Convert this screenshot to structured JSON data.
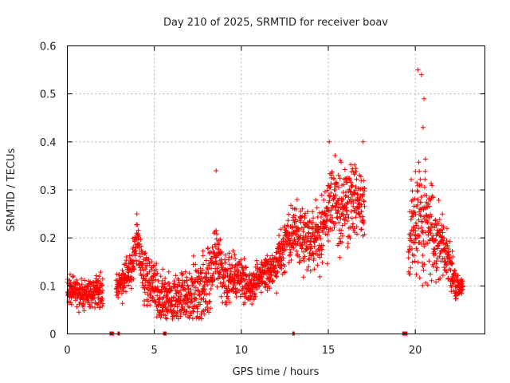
{
  "chart_data": {
    "type": "scatter",
    "title": "Day 210 of 2025, SRMTID for receiver boav",
    "xlabel": "GPS time / hours",
    "ylabel": "SRMTID / TECUs",
    "xlim": [
      0,
      24
    ],
    "ylim": [
      0,
      0.6
    ],
    "xticks": [
      0,
      5,
      10,
      15,
      20
    ],
    "xtick_labels": [
      "0",
      "5",
      "10",
      "15",
      "20"
    ],
    "yticks": [
      0,
      0.1,
      0.2,
      0.3,
      0.4,
      0.5,
      0.6
    ],
    "ytick_labels": [
      "0",
      "0.1",
      "0.2",
      "0.3",
      "0.4",
      "0.5",
      "0.6"
    ],
    "grid": true,
    "marker": "+",
    "color": "#ff0000",
    "series": [
      {
        "name": "SRMTID",
        "profile": [
          [
            0.0,
            0.09
          ],
          [
            0.5,
            0.09
          ],
          [
            1.0,
            0.08
          ],
          [
            1.5,
            0.09
          ],
          [
            2.0,
            0.09
          ],
          [
            2.9,
            0.1
          ],
          [
            3.3,
            0.12
          ],
          [
            3.7,
            0.14
          ],
          [
            4.0,
            0.2
          ],
          [
            4.3,
            0.13
          ],
          [
            4.8,
            0.11
          ],
          [
            5.3,
            0.08
          ],
          [
            6.0,
            0.07
          ],
          [
            7.0,
            0.08
          ],
          [
            8.0,
            0.09
          ],
          [
            8.5,
            0.17
          ],
          [
            9.0,
            0.11
          ],
          [
            10.0,
            0.12
          ],
          [
            10.5,
            0.09
          ],
          [
            11.0,
            0.12
          ],
          [
            12.0,
            0.14
          ],
          [
            12.5,
            0.19
          ],
          [
            13.0,
            0.22
          ],
          [
            13.5,
            0.2
          ],
          [
            14.0,
            0.19
          ],
          [
            14.5,
            0.2
          ],
          [
            15.0,
            0.26
          ],
          [
            15.5,
            0.27
          ],
          [
            16.0,
            0.27
          ],
          [
            16.5,
            0.28
          ],
          [
            17.0,
            0.27
          ],
          [
            19.6,
            0.18
          ],
          [
            20.0,
            0.24
          ],
          [
            20.5,
            0.25
          ],
          [
            21.0,
            0.21
          ],
          [
            21.5,
            0.19
          ],
          [
            22.0,
            0.14
          ],
          [
            22.3,
            0.1
          ],
          [
            22.7,
            0.1
          ]
        ],
        "spread": [
          [
            0.0,
            0.03
          ],
          [
            3.5,
            0.04
          ],
          [
            4.0,
            0.06
          ],
          [
            8.5,
            0.07
          ],
          [
            11.0,
            0.03
          ],
          [
            12.5,
            0.06
          ],
          [
            15.0,
            0.08
          ],
          [
            16.8,
            0.09
          ],
          [
            19.6,
            0.06
          ],
          [
            20.2,
            0.15
          ],
          [
            21.0,
            0.1
          ],
          [
            22.0,
            0.05
          ],
          [
            22.7,
            0.02
          ]
        ],
        "segments": [
          [
            0.0,
            2.05
          ],
          [
            2.8,
            17.1
          ],
          [
            19.6,
            22.75
          ]
        ],
        "count": 2200
      }
    ],
    "peaks": [
      {
        "x": 20.15,
        "y": 0.55
      },
      {
        "x": 20.35,
        "y": 0.54
      },
      {
        "x": 20.5,
        "y": 0.49
      },
      {
        "x": 20.45,
        "y": 0.43
      },
      {
        "x": 8.55,
        "y": 0.34
      },
      {
        "x": 15.05,
        "y": 0.4
      },
      {
        "x": 17.0,
        "y": 0.4
      },
      {
        "x": 4.0,
        "y": 0.25
      }
    ],
    "data_gaps": [
      2.55,
      2.95,
      5.6,
      13.0,
      19.4
    ],
    "gap_widths": [
      0.25,
      0.1,
      0.2,
      0.1,
      0.3
    ]
  }
}
